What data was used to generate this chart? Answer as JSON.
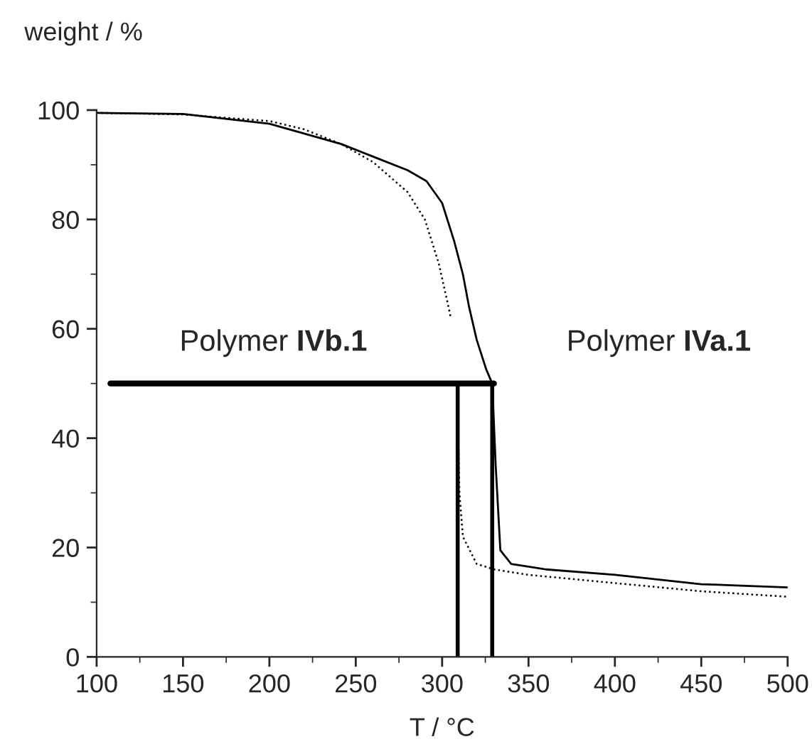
{
  "chart_data": {
    "type": "line",
    "xlabel": "T / °C",
    "ylabel": "weight / %",
    "xlim": [
      100,
      500
    ],
    "ylim": [
      0,
      100
    ],
    "xticks": [
      100,
      150,
      200,
      250,
      300,
      350,
      400,
      450,
      500
    ],
    "yticks": [
      0,
      20,
      40,
      60,
      80,
      100
    ],
    "grid": false,
    "legend": false,
    "marker": "none",
    "series": [
      {
        "color": "#000000",
        "line_style": "solid",
        "x": [
          100,
          150,
          200,
          241.5,
          260,
          280,
          291,
          300,
          307,
          312,
          315.6,
          320,
          325.5,
          329,
          331,
          333.7,
          340,
          360,
          400,
          450,
          500
        ],
        "values": [
          99.5,
          99.3,
          97.5,
          93.8,
          91.5,
          89,
          87,
          83,
          76,
          70,
          64,
          58,
          52.6,
          50,
          35,
          19.5,
          17,
          16,
          15,
          13.3,
          12.7
        ]
      },
      {
        "color": "#000000",
        "line_style": "dotted",
        "x": [
          100,
          150,
          200,
          220,
          241.5,
          260,
          280,
          290,
          298,
          303,
          305,
          307,
          309,
          310,
          312,
          320,
          330,
          350,
          400,
          450,
          500
        ],
        "values": [
          99.5,
          99.2,
          98,
          96.5,
          93.8,
          90.5,
          85,
          80,
          72,
          65,
          62,
          null,
          45,
          30,
          22,
          17,
          16,
          15,
          13.5,
          12,
          11
        ]
      },
      {
        "color": "#000000",
        "line_style": "solid",
        "x": [
          108,
          330
        ],
        "values": [
          50,
          50
        ]
      },
      {
        "color": "#000000",
        "line_style": "solid",
        "x": [
          309,
          309
        ],
        "values": [
          50,
          0
        ]
      },
      {
        "color": "#000000",
        "line_style": "solid",
        "x": [
          329,
          329
        ],
        "values": [
          50,
          0
        ]
      }
    ],
    "annotations": [
      "Polymer IVb.1",
      "Polymer IVa.1"
    ]
  }
}
